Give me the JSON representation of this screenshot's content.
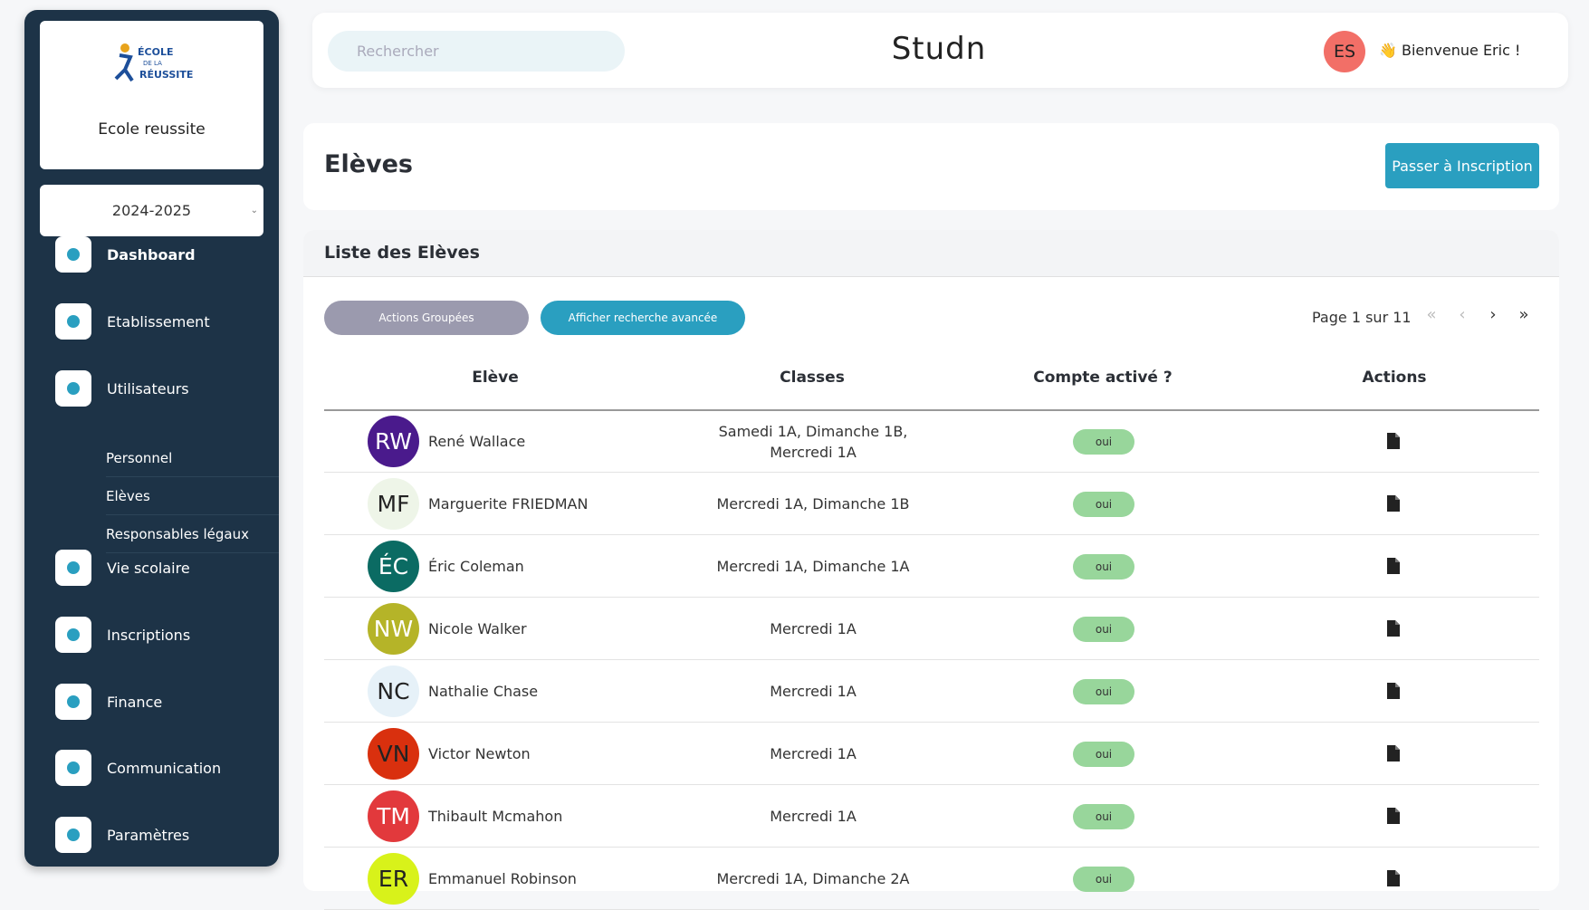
{
  "sidebar": {
    "logo_lines": [
      "ÉCOLE",
      "DE LA",
      "RÉUSSITE"
    ],
    "school_name": "Ecole reussite",
    "year": "2024-2025",
    "menu": [
      "Dashboard",
      "Etablissement",
      "Utilisateurs",
      "Vie scolaire",
      "Inscriptions",
      "Finance",
      "Communication",
      "Paramètres"
    ],
    "submenu": [
      "Personnel",
      "Elèves",
      "Responsables légaux"
    ]
  },
  "topbar": {
    "search_placeholder": "Rechercher",
    "brand": "Studn",
    "user_initials": "ES",
    "greeting": "👋 Bienvenue Eric !"
  },
  "page": {
    "title": "Elèves",
    "button": "Passer à Inscription"
  },
  "list": {
    "title": "Liste des Elèves",
    "group_actions": "Actions Groupées",
    "advanced_search": "Afficher recherche avancée",
    "pagination": {
      "label": "Page 1 sur 11",
      "controls": [
        "«",
        "‹",
        "›",
        "»"
      ]
    },
    "columns": [
      "Elève",
      "Classes",
      "Compte activé ?",
      "Actions"
    ],
    "rows": [
      {
        "initials": "RW",
        "name": "René Wallace",
        "classes": "Samedi 1A, Dimanche 1B, Mercredi 1A",
        "active": "oui",
        "color": "#4a1a8c",
        "text_color": "#ffffff"
      },
      {
        "initials": "MF",
        "name": "Marguerite FRIEDMAN",
        "classes": "Mercredi 1A, Dimanche 1B",
        "active": "oui",
        "color": "#eef5e8",
        "text_color": "#222222"
      },
      {
        "initials": "ÉC",
        "name": "Éric Coleman",
        "classes": "Mercredi 1A, Dimanche 1A",
        "active": "oui",
        "color": "#0b6b63",
        "text_color": "#ffffff"
      },
      {
        "initials": "NW",
        "name": "Nicole Walker",
        "classes": "Mercredi 1A",
        "active": "oui",
        "color": "#b5b428",
        "text_color": "#ffffff"
      },
      {
        "initials": "NC",
        "name": "Nathalie Chase",
        "classes": "Mercredi 1A",
        "active": "oui",
        "color": "#e6f1f8",
        "text_color": "#222222"
      },
      {
        "initials": "VN",
        "name": "Victor Newton",
        "classes": "Mercredi 1A",
        "active": "oui",
        "color": "#d9300e",
        "text_color": "#222222"
      },
      {
        "initials": "TM",
        "name": "Thibault Mcmahon",
        "classes": "Mercredi 1A",
        "active": "oui",
        "color": "#e2393c",
        "text_color": "#ffffff"
      },
      {
        "initials": "ER",
        "name": "Emmanuel Robinson",
        "classes": "Mercredi 1A, Dimanche 2A",
        "active": "oui",
        "color": "#d8f21a",
        "text_color": "#222222"
      }
    ]
  }
}
